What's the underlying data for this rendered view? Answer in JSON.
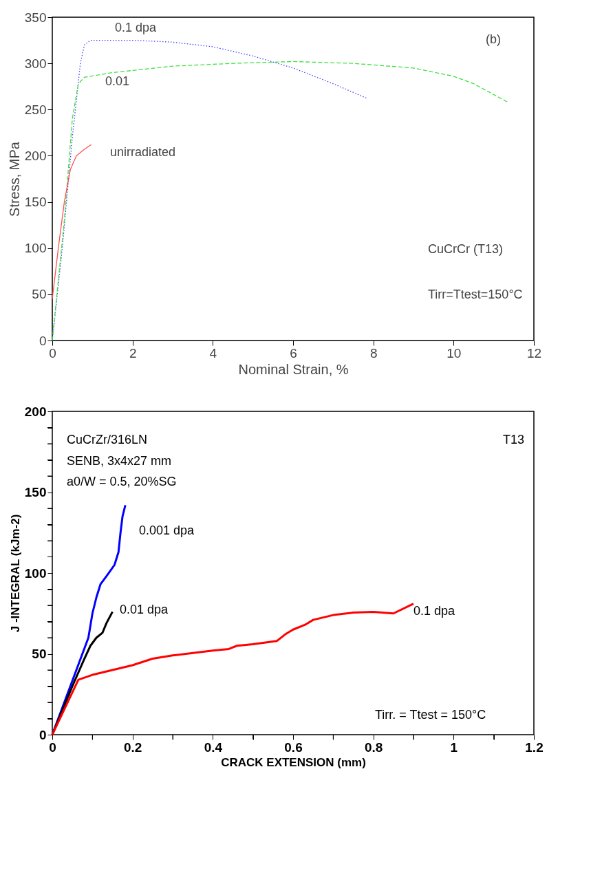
{
  "chart_data": [
    {
      "type": "line",
      "xlabel": "Nominal Strain, %",
      "ylabel": "Stress, MPa",
      "xlim": [
        0,
        12
      ],
      "ylim": [
        0,
        350
      ],
      "xticks": [
        0,
        2,
        4,
        6,
        8,
        10,
        12
      ],
      "yticks": [
        0,
        50,
        100,
        150,
        200,
        250,
        300,
        350
      ],
      "grid": false,
      "series": [
        {
          "color": "#4040ff",
          "line_style": "dotted",
          "x": [
            0,
            0.25,
            0.5,
            0.7,
            0.8,
            0.95,
            2,
            3,
            4,
            5,
            6,
            7,
            7.85
          ],
          "values": [
            0,
            100,
            220,
            300,
            320,
            325,
            325,
            323,
            318,
            308,
            295,
            278,
            262
          ]
        },
        {
          "color": "#40e040",
          "line_style": "dashed",
          "x": [
            0,
            0.3,
            0.5,
            0.65,
            0.8,
            1.5,
            3,
            4.5,
            6,
            7.5,
            9,
            10,
            10.5,
            11.35
          ],
          "values": [
            0,
            130,
            240,
            278,
            285,
            290,
            297,
            300,
            302,
            300,
            295,
            286,
            278,
            258
          ]
        },
        {
          "color": "#ff5050",
          "line_style": "solid",
          "x": [
            0,
            0.15,
            0.3,
            0.45,
            0.6,
            0.8,
            0.97
          ],
          "values": [
            45,
            100,
            150,
            185,
            200,
            207,
            212
          ]
        }
      ],
      "annotations": [
        "0.1 dpa",
        "0.01",
        "unirradiated",
        "(b)",
        "CuCrCr (T13)",
        "Tirr=Ttest=150°C"
      ]
    },
    {
      "type": "line",
      "xlabel": "CRACK EXTENSION (mm)",
      "ylabel": "J -INTEGRAL (kJm-2)",
      "xlim": [
        0,
        1.2
      ],
      "ylim": [
        0,
        200
      ],
      "xticks": [
        0,
        {
          "value": 0.1,
          "label": null
        },
        0.2,
        {
          "value": 0.3,
          "label": null
        },
        0.4,
        {
          "value": 0.5,
          "label": null
        },
        0.6,
        {
          "value": 0.7,
          "label": null
        },
        0.8,
        {
          "value": 0.9,
          "label": null
        },
        1,
        {
          "value": 1.1,
          "label": null
        },
        1.2
      ],
      "yticks": [
        0,
        {
          "value": 10,
          "label": null
        },
        {
          "value": 20,
          "label": null
        },
        {
          "value": 30,
          "label": null
        },
        {
          "value": 40,
          "label": null
        },
        50,
        {
          "value": 60,
          "label": null
        },
        {
          "value": 70,
          "label": null
        },
        {
          "value": 80,
          "label": null
        },
        {
          "value": 90,
          "label": null
        },
        100,
        {
          "value": 110,
          "label": null
        },
        {
          "value": 120,
          "label": null
        },
        {
          "value": 130,
          "label": null
        },
        {
          "value": 140,
          "label": null
        },
        150,
        {
          "value": 160,
          "label": null
        },
        {
          "value": 170,
          "label": null
        },
        {
          "value": 180,
          "label": null
        },
        {
          "value": 190,
          "label": null
        },
        200
      ],
      "grid": false,
      "series": [
        {
          "color": "#0000ff",
          "line_style": "solid",
          "x": [
            0,
            0.09,
            0.1,
            0.11,
            0.12,
            0.135,
            0.155,
            0.165,
            0.17,
            0.175,
            0.182
          ],
          "values": [
            0,
            60,
            75,
            85,
            93,
            98,
            105,
            113,
            125,
            135,
            142
          ]
        },
        {
          "color": "#000000",
          "line_style": "solid",
          "x": [
            0,
            0.05,
            0.08,
            0.095,
            0.11,
            0.125,
            0.135,
            0.15
          ],
          "values": [
            0,
            30,
            47,
            55,
            60,
            63,
            69,
            76
          ]
        },
        {
          "color": "#ff0000",
          "line_style": "solid",
          "x": [
            0,
            0.065,
            0.1,
            0.15,
            0.2,
            0.25,
            0.3,
            0.4,
            0.44,
            0.46,
            0.5,
            0.56,
            0.58,
            0.6,
            0.63,
            0.65,
            0.7,
            0.75,
            0.8,
            0.85,
            0.9
          ],
          "values": [
            0,
            34,
            37,
            40,
            43,
            47,
            49,
            52,
            53,
            55,
            56,
            58,
            62,
            65,
            68,
            71,
            74,
            75.5,
            76,
            75,
            81
          ]
        }
      ],
      "annotations": [
        "CuCrZr/316LN",
        "SENB, 3x4x27 mm",
        "a0/W = 0.5, 20%SG",
        "T13",
        "0.001 dpa",
        "0.01 dpa",
        "0.1 dpa",
        "Tirr. = Ttest = 150°C"
      ]
    }
  ]
}
